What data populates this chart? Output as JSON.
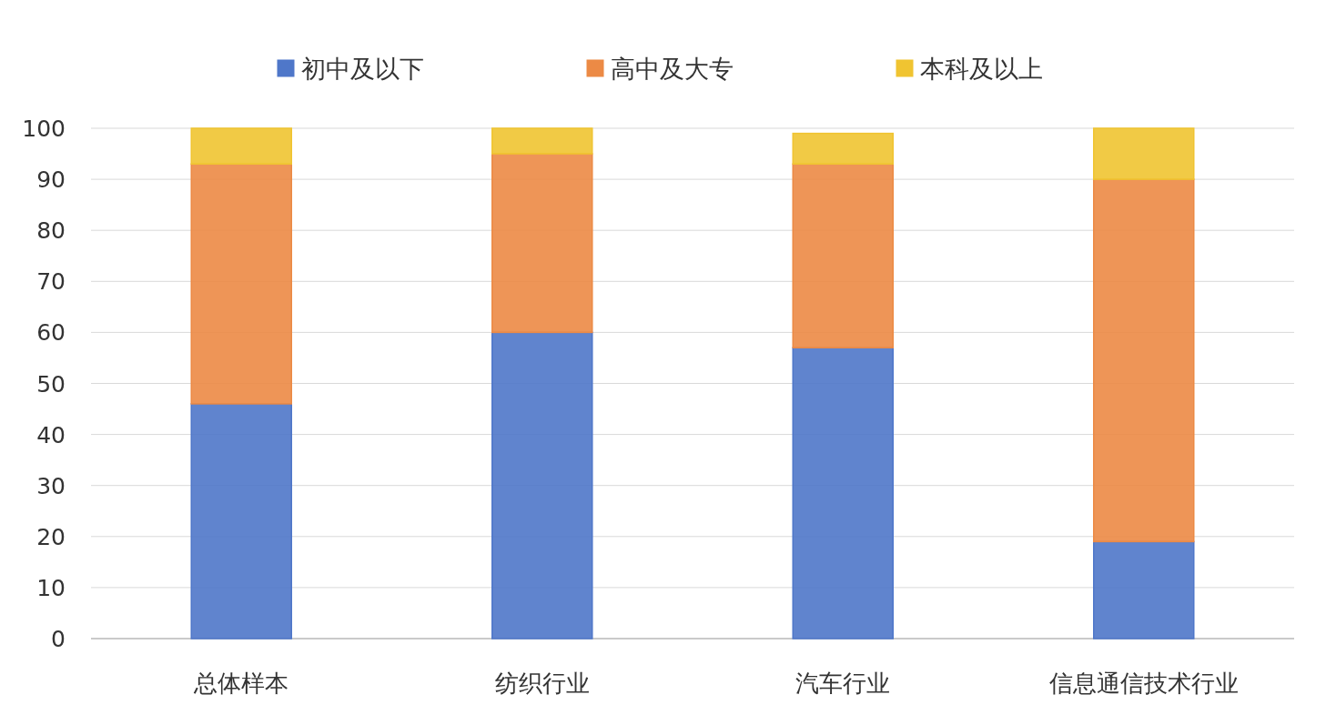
{
  "chart_data": {
    "type": "bar",
    "stacked": true,
    "categories": [
      "总体样本",
      "纺织行业",
      "汽车行业",
      "信息通信技术行业"
    ],
    "series": [
      {
        "name": "初中及以下",
        "color": "#4f77c9",
        "values": [
          46,
          60,
          57,
          19
        ]
      },
      {
        "name": "高中及大专",
        "color": "#ec8a45",
        "values": [
          47,
          35,
          36,
          71
        ]
      },
      {
        "name": "本科及以上",
        "color": "#f0c431",
        "values": [
          7,
          5,
          6,
          10
        ]
      }
    ],
    "ylim": [
      0,
      100
    ],
    "yticks": [
      0,
      10,
      20,
      30,
      40,
      50,
      60,
      70,
      80,
      90,
      100
    ],
    "grid": "y",
    "legend": "top"
  }
}
